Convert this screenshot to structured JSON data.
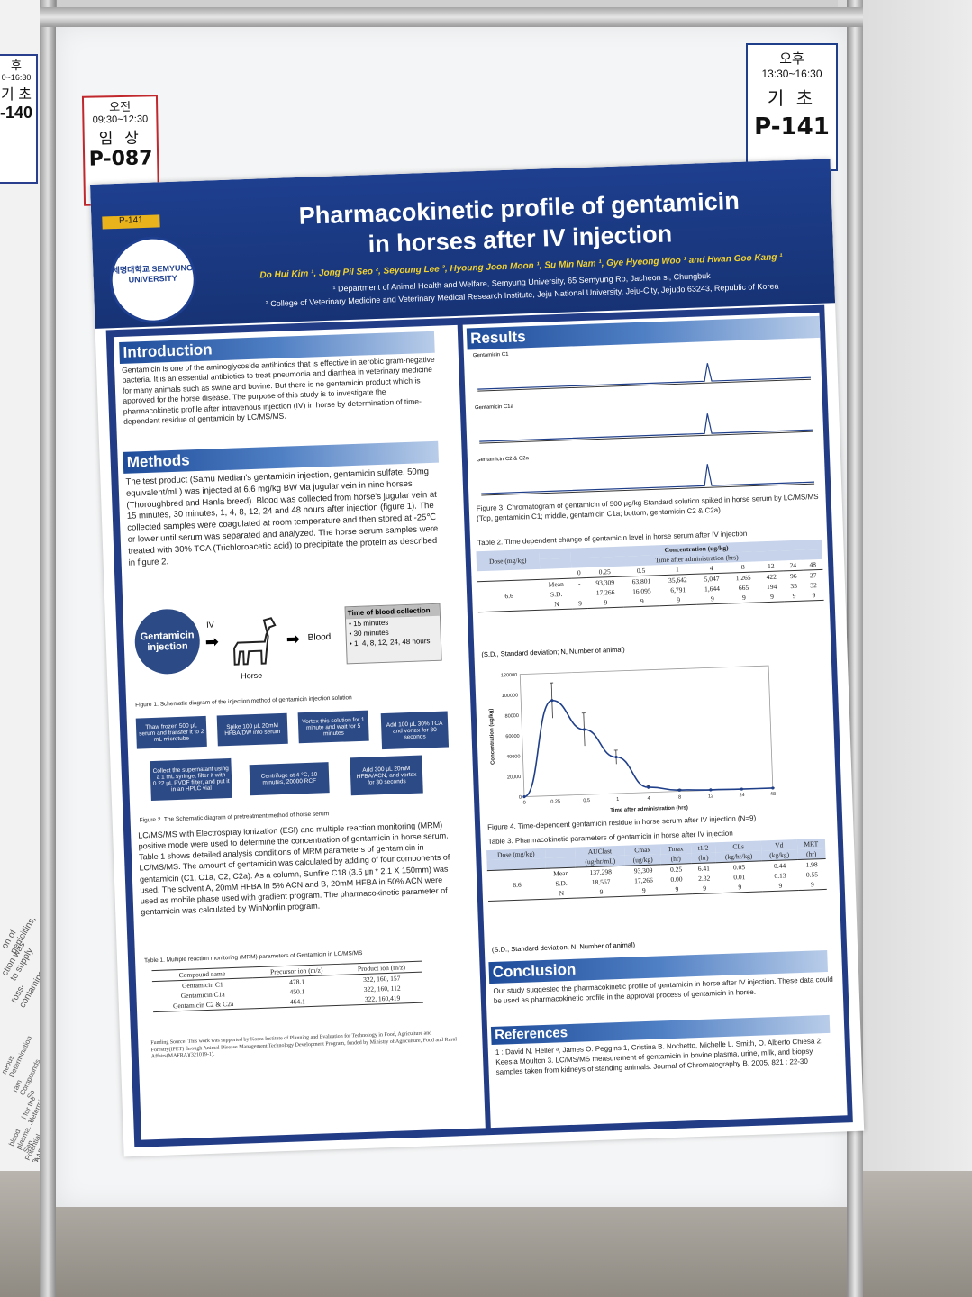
{
  "left_neighbor": {
    "tag_time": "0~16:30",
    "tag_lines": [
      "후",
      "기 초",
      "-140"
    ],
    "side_texts": [
      "on of penicillins,",
      "ction was to supply",
      "ross-contamination",
      "neous Determination",
      "ram Compounds So",
      "l for the determinatio",
      "blood plasma. J. Sep",
      "Potential β-Lactam",
      "AAPS Journal 2018)"
    ]
  },
  "tag_left": {
    "period": "오전",
    "time": "09:30~12:30",
    "category": "임 상",
    "code": "P-087"
  },
  "tag_right": {
    "period": "오후",
    "time": "13:30~16:30",
    "category": "기 초",
    "code": "P-141"
  },
  "poster": {
    "code_badge": "P-141",
    "logo_text": "세명대학교 SEMYUNG UNIVERSITY",
    "title_line1": "Pharmacokinetic profile of gentamicin",
    "title_line2": "in horses after IV injection",
    "authors": "Do Hui Kim ¹, Jong Pil Seo ², Seyoung Lee ², Hyoung Joon Moon ¹, Su Min Nam ¹, Gye Hyeong Woo ¹ and Hwan Goo Kang ¹",
    "affiliation1": "¹ Department of Animal Health and Welfare, Semyung University, 65 Semyung Ro, Jacheon si, Chungbuk",
    "affiliation2": "² College of Veterinary Medicine and Veterinary Medical Research Institute, Jeju National University, Jeju-City, Jejudo 63243, Republic of Korea",
    "introduction": {
      "heading": "Introduction",
      "text": "Gentamicin is one of the aminoglycoside antibiotics that is effective in aerobic gram-negative bacteria. It is an essential antibiotics to treat pneumonia and diarrhea in veterinary medicine for many animals such as swine and bovine. But there is no gentamicin product which is approved for the horse disease. The purpose of this study is to investigate the pharmacokinetic profile after intravenous injection (IV) in horse by determination of time-dependent residue of gentamicin by LC/MS/MS."
    },
    "methods": {
      "heading": "Methods",
      "text": "The test product (Samu Median's gentamicin injection, gentamicin sulfate, 50mg equivalent/mL) was injected at 6.6 mg/kg BW via jugular vein in nine horses (Thoroughbred and Hanla breed). Blood was collected from horse's jugular vein at 15 minutes, 30 minutes, 1, 4, 8, 12, 24 and 48 hours after injection (figure 1). The collected samples were coagulated at room temperature and then stored at -25℃ or lower until serum was separated and analyzed. The horse serum samples were treated with 30% TCA (Trichloroacetic acid) to precipitate the protein as described in figure 2.",
      "fig1": {
        "circle": "Gentamicin injection",
        "route": "IV",
        "animal": "Horse",
        "sample": "Blood",
        "box_title": "Time of blood collection",
        "box_items": [
          "• 15 minutes",
          "• 30 minutes",
          "• 1, 4, 8, 12, 24, 48 hours"
        ],
        "caption": "Figure 1. Schematic diagram of the injection method of gentamicin injection solution"
      },
      "fig2": {
        "steps": [
          "Thaw frozen 500 μL serum and transfer it to 2 mL microtube",
          "Spike 100 μL 20mM HFBA/DW into serum",
          "Vortex this solution for 1 minute and wait for 5 minutes",
          "Add 100 μL 30% TCA and vortex for 30 seconds",
          "Collect the supernatant using a 1 mL syringe, filter it with 0.22 μL PVDF filter, and put it in an HPLC vial",
          "Centrifuge at 4 °C, 10 minutes, 20000 RCF",
          "Add 300 μL 20mM HFBA/ACN, and vortex for 30 seconds"
        ],
        "caption": "Figure 2. The Schematic diagram of pretreatment method of horse serum"
      },
      "text2": "LC/MS/MS with Electrospray ionization (ESI) and multiple reaction monitoring (MRM) positive mode were used to determine the concentration of gentamicin in horse serum. Table 1 shows detailed analysis conditions of MRM parameters of gentamicin in LC/MS/MS. The amount of gentamicin was calculated by adding of four components of gentamicin (C1, C1a, C2, C2a). As a column, Sunfire C18 (3.5 ㎛ * 2.1 X 150mm) was used. The solvent A, 20mM HFBA in 5% ACN and B, 20mM HFBA in 50% ACN were used as mobile phase used with gradient program. The pharmacokinetic parameter of gentamicin was calculated by WinNonlin program.",
      "table1": {
        "caption": "Table 1. Multiple reaction monitoring (MRM) parameters of Gentamicin in LC/MS/MS",
        "headers": [
          "Compound name",
          "Precursor ion (m/z)",
          "Product ion (m/z)"
        ],
        "rows": [
          [
            "Gentamicin C1",
            "478.1",
            "322, 160, 157"
          ],
          [
            "Gentamicin C1a",
            "450.1",
            "322, 160, 112"
          ],
          [
            "Gentamicin C2 & C2a",
            "464.1",
            "322, 160,419"
          ]
        ]
      },
      "funding": "Funding Source: This work was supported by Korea Institute of Planning and Evaluation for Technology in Food, Agriculture and Forestry(IPET) through Animal Disease Management Technology Development Program, funded by Ministry of Agriculture, Food and Rural Affairs(MAFRA)(321019-1)."
    },
    "results": {
      "heading": "Results",
      "chromatograms": [
        {
          "label": "Gentamicin  C1"
        },
        {
          "label": "Gentamicin  C1a"
        },
        {
          "label": "Gentamicin  C2 & C2a"
        }
      ],
      "fig3_caption": "Figure 3. Chromatogram of  gentamicin of 500 μg/kg Standard solution spiked in horse serum by LC/MS/MS (Top, gentamicin C1; middle, gentamicin C1a; bottom, gentamicin C2 & C2a)",
      "table2": {
        "caption": "Table 2. Time dependent change of gentamicin level in horse serum after IV injection",
        "dose_header": "Dose (mg/kg)",
        "conc_header": "Concentration (ug/kg)",
        "time_header": "Time after administration (hrs)",
        "times": [
          "0",
          "0.25",
          "0.5",
          "1",
          "4",
          "8",
          "12",
          "24",
          "48"
        ],
        "dose": "6.6",
        "rows": [
          {
            "label": "Mean",
            "values": [
              "-",
              "93,309",
              "63,801",
              "35,642",
              "5,047",
              "1,265",
              "422",
              "96",
              "27"
            ]
          },
          {
            "label": "S.D.",
            "values": [
              "-",
              "17,266",
              "16,095",
              "6,791",
              "1,644",
              "665",
              "194",
              "35",
              "32"
            ]
          },
          {
            "label": "N",
            "values": [
              "9",
              "9",
              "9",
              "9",
              "9",
              "9",
              "9",
              "9",
              "9"
            ]
          }
        ],
        "note": "(S.D., Standard deviation; N, Number of animal)"
      },
      "fig4_caption": "Figure 4. Time-dependent gentamicin residue in horse serum after IV injection (N=9)",
      "table3": {
        "caption": "Table 3. Pharmacokinetic parameters of gentamicin in horse after IV injection",
        "headers": [
          "Dose (mg/kg)",
          "",
          "AUClast",
          "Cmax",
          "Tmax",
          "t1/2",
          "CLs",
          "Vd",
          "MRT"
        ],
        "units": [
          "",
          "",
          "(ug•hr/mL)",
          "(ug/kg)",
          "(hr)",
          "(hr)",
          "(kg/hr/kg)",
          "(kg/kg)",
          "(hr)"
        ],
        "dose": "6.6",
        "rows": [
          {
            "label": "Mean",
            "values": [
              "137,298",
              "93,309",
              "0.25",
              "6.41",
              "0.05",
              "0.44",
              "1.98"
            ]
          },
          {
            "label": "S.D.",
            "values": [
              "18,567",
              "17,266",
              "0.00",
              "2.32",
              "0.01",
              "0.13",
              "0.55"
            ]
          },
          {
            "label": "N",
            "values": [
              "9",
              "9",
              "9",
              "9",
              "9",
              "9",
              "9"
            ]
          }
        ],
        "note": "(S.D., Standard deviation; N, Number of animal)"
      }
    },
    "conclusion": {
      "heading": "Conclusion",
      "text": "Our study suggested the pharmacokinetic profile of  gentamicin in horse after IV injection. These data could be used as pharmacokinetic profile in the approval process of gentamicin in horse."
    },
    "references": {
      "heading": "References",
      "text": "1 :  David N. Heller ᵃ, James O. Peggins 1, Cristina B. Nochetto, Michelle L. Smith, O. Alberto Chiesa 2, Keesla Moulton 3. LC/MS/MS measurement of gentamicin in bovine plasma, urine, milk, and biopsy samples taken from kidneys of standing animals. Journal of Chromatography B. 2005, 821 : 22-30"
    }
  },
  "chart_data": {
    "type": "line",
    "title": "",
    "xlabel": "Time after administration (hrs)",
    "ylabel": "Concentration (ug/kg)",
    "x_ticks": [
      "0",
      "0.25",
      "0.5",
      "1",
      "4",
      "8",
      "12",
      "24",
      "48"
    ],
    "y_ticks": [
      "0",
      "20000",
      "40000",
      "60000",
      "80000",
      "100000",
      "120000"
    ],
    "ylim": [
      0,
      120000
    ],
    "x": [
      "0",
      "0.25",
      "0.5",
      "1",
      "4",
      "8",
      "12",
      "24",
      "48"
    ],
    "values": [
      0,
      93309,
      63801,
      35642,
      5047,
      1265,
      422,
      96,
      27
    ],
    "error": [
      0,
      17266,
      16095,
      6791,
      1644,
      665,
      194,
      35,
      32
    ],
    "color": "#1f3f8a"
  }
}
